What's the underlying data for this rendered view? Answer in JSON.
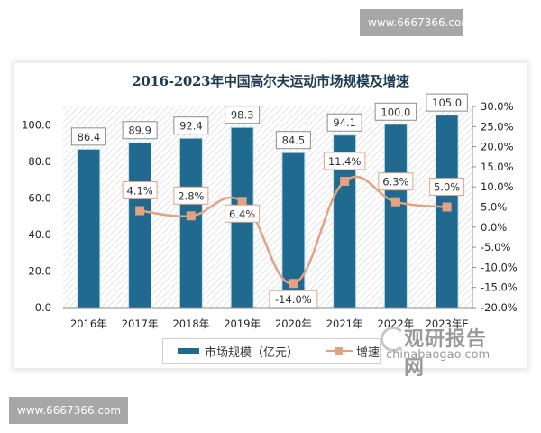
{
  "watermarks": {
    "top": "www.6667366.com",
    "bottom": "www.6667366.com"
  },
  "chart_data": {
    "type": "bar+line",
    "title": "2016-2023年中国高尔夫运动市场规模及增速",
    "categories": [
      "2016年",
      "2017年",
      "2018年",
      "2019年",
      "2020年",
      "2021年",
      "2022年",
      "2023年E"
    ],
    "series": [
      {
        "name": "市场规模（亿元）",
        "type": "bar",
        "axis": "left",
        "color": "#1f6a8e",
        "values": [
          86.4,
          89.9,
          92.4,
          98.3,
          84.5,
          94.1,
          100.0,
          105.0
        ],
        "labels": [
          "86.4",
          "89.9",
          "92.4",
          "98.3",
          "84.5",
          "94.1",
          "100.0",
          "105.0"
        ]
      },
      {
        "name": "增速",
        "type": "line",
        "axis": "right",
        "color": "#e3a283",
        "values": [
          null,
          4.1,
          2.8,
          6.4,
          -14.0,
          11.4,
          6.3,
          5.0
        ],
        "labels": [
          "",
          "4.1%",
          "2.8%",
          "6.4%",
          "-14.0%",
          "11.4%",
          "6.3%",
          "5.0%"
        ]
      }
    ],
    "left_axis": {
      "ticks": [
        "0.0",
        "20.0",
        "40.0",
        "60.0",
        "80.0",
        "100.0"
      ],
      "ylim": [
        0,
        110
      ]
    },
    "right_axis": {
      "ticks": [
        "30.0%",
        "25.0%",
        "20.0%",
        "15.0%",
        "10.0%",
        "5.0%",
        "0.0%",
        "-5.0%",
        "-10.0%",
        "-15.0%",
        "-20.0%"
      ],
      "ylim": [
        -20,
        30
      ]
    },
    "legend": {
      "bar": "市场规模（亿元）",
      "line": "增速",
      "position": "bottom"
    },
    "grid": false
  },
  "brand": {
    "cn": "观研报告网",
    "en": "chinabaogao.com"
  }
}
